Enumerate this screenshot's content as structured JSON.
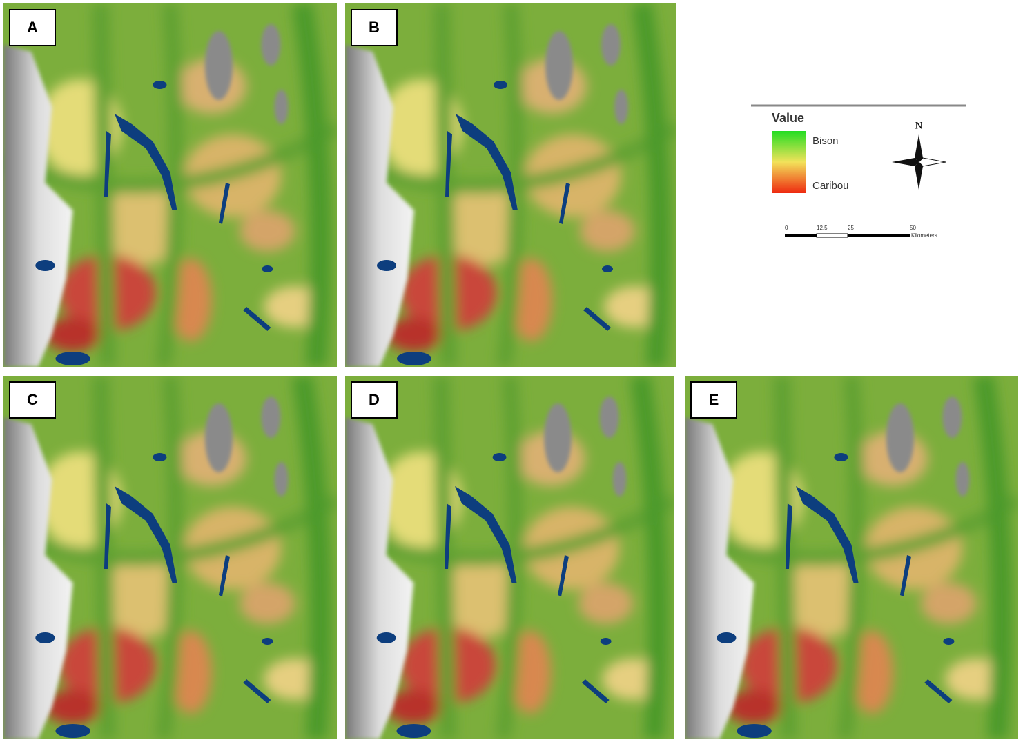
{
  "panels": [
    {
      "label": "A"
    },
    {
      "label": "B"
    },
    {
      "label": "C"
    },
    {
      "label": "D"
    },
    {
      "label": "E"
    }
  ],
  "legend": {
    "title": "Value",
    "high": "Bison",
    "low": "Caribou"
  },
  "north": "N",
  "scale_bar": {
    "ticks": [
      "0",
      "12.5",
      "25",
      "50"
    ],
    "unit": "Kilometers"
  }
}
